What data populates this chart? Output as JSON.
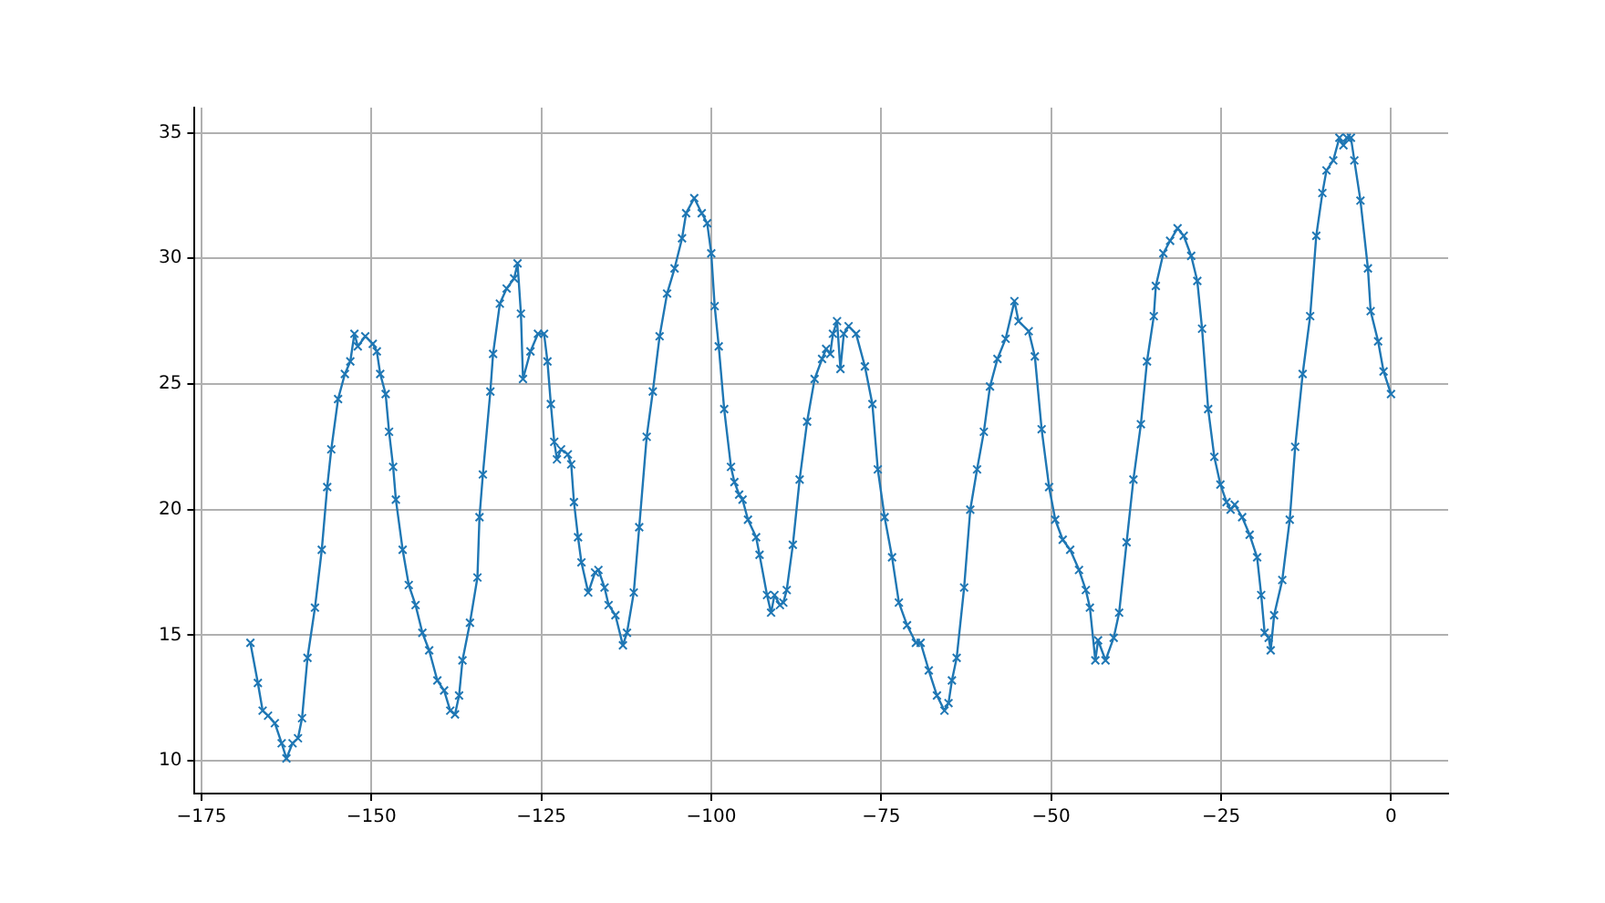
{
  "chart_data": {
    "type": "line",
    "marker": "cross",
    "grid": true,
    "xlim": [
      -176,
      8.4
    ],
    "ylim": [
      8.7,
      36.0
    ],
    "xticks": [
      {
        "value": -175,
        "label": "−175"
      },
      {
        "value": -150,
        "label": "−150"
      },
      {
        "value": -125,
        "label": "−125"
      },
      {
        "value": -100,
        "label": "−100"
      },
      {
        "value": -75,
        "label": "−75"
      },
      {
        "value": -50,
        "label": "−50"
      },
      {
        "value": -25,
        "label": "−25"
      },
      0
    ],
    "yticks": [
      10,
      15,
      20,
      25,
      30,
      35
    ],
    "series": [
      {
        "color": "#1f77b4",
        "x": [
          -167.8,
          -166.7,
          -166.0,
          -165.2,
          -164.2,
          -163.2,
          -162.5,
          -161.6,
          -160.8,
          -160.2,
          -159.4,
          -158.3,
          -157.3,
          -156.5,
          -155.9,
          -154.9,
          -153.9,
          -153.1,
          -152.5,
          -152.0,
          -150.9,
          -149.8,
          -149.2,
          -148.7,
          -147.9,
          -147.4,
          -146.8,
          -146.4,
          -145.4,
          -144.5,
          -143.5,
          -142.5,
          -141.5,
          -140.3,
          -139.3,
          -138.4,
          -137.7,
          -137.1,
          -136.6,
          -135.5,
          -134.4,
          -134.1,
          -133.6,
          -132.5,
          -132.1,
          -131.1,
          -130.1,
          -129.0,
          -128.5,
          -128.0,
          -127.7,
          -126.6,
          -125.5,
          -124.6,
          -124.1,
          -123.6,
          -123.1,
          -122.7,
          -122.1,
          -121.1,
          -120.6,
          -120.2,
          -119.6,
          -119.1,
          -118.1,
          -117.1,
          -116.6,
          -115.7,
          -115.1,
          -114.1,
          -113.0,
          -112.4,
          -111.4,
          -110.6,
          -109.5,
          -108.6,
          -107.6,
          -106.5,
          -105.4,
          -104.3,
          -103.7,
          -102.5,
          -101.4,
          -100.6,
          -100.0,
          -99.5,
          -98.9,
          -98.1,
          -97.1,
          -96.6,
          -95.9,
          -95.4,
          -94.6,
          -93.4,
          -92.9,
          -91.8,
          -91.2,
          -90.7,
          -89.9,
          -89.4,
          -88.9,
          -88.0,
          -87.0,
          -85.9,
          -84.8,
          -83.7,
          -83.1,
          -82.5,
          -82.1,
          -81.5,
          -81.0,
          -80.5,
          -79.8,
          -78.7,
          -77.4,
          -76.3,
          -75.5,
          -74.5,
          -73.4,
          -72.4,
          -71.2,
          -69.9,
          -69.2,
          -68.0,
          -66.8,
          -65.7,
          -65.1,
          -64.6,
          -63.9,
          -62.8,
          -61.9,
          -60.9,
          -59.9,
          -59.0,
          -57.9,
          -56.7,
          -55.4,
          -54.8,
          -53.3,
          -52.4,
          -51.4,
          -50.3,
          -49.4,
          -48.3,
          -47.2,
          -45.9,
          -44.9,
          -44.3,
          -43.5,
          -43.1,
          -42.0,
          -40.8,
          -40.0,
          -38.9,
          -37.9,
          -36.8,
          -35.9,
          -34.9,
          -34.6,
          -33.5,
          -32.5,
          -31.4,
          -30.5,
          -29.4,
          -28.5,
          -27.8,
          -26.9,
          -26.0,
          -25.1,
          -24.2,
          -23.6,
          -23.0,
          -21.9,
          -20.8,
          -19.7,
          -19.1,
          -18.6,
          -18.0,
          -17.7,
          -17.2,
          -16.0,
          -14.9,
          -14.1,
          -13.0,
          -11.9,
          -11.0,
          -10.1,
          -9.5,
          -8.5,
          -7.6,
          -7.0,
          -6.5,
          -5.9,
          -5.4,
          -4.5,
          -3.4,
          -3.0,
          -1.9,
          -1.1,
          0.0
        ],
        "values": [
          14.7,
          13.1,
          12.0,
          11.8,
          11.5,
          10.7,
          10.1,
          10.7,
          10.9,
          11.7,
          14.1,
          16.1,
          18.4,
          20.9,
          22.4,
          24.4,
          25.4,
          25.9,
          27.0,
          26.5,
          26.9,
          26.6,
          26.3,
          25.4,
          24.6,
          23.1,
          21.7,
          20.4,
          18.4,
          17.0,
          16.2,
          15.1,
          14.4,
          13.2,
          12.8,
          12.0,
          11.85,
          12.6,
          14.0,
          15.5,
          17.3,
          19.7,
          21.4,
          24.7,
          26.2,
          28.2,
          28.8,
          29.2,
          29.8,
          27.8,
          25.2,
          26.3,
          27.0,
          27.0,
          25.9,
          24.2,
          22.7,
          22.0,
          22.4,
          22.2,
          21.8,
          20.3,
          18.9,
          17.9,
          16.7,
          17.5,
          17.6,
          16.9,
          16.2,
          15.8,
          14.6,
          15.1,
          16.7,
          19.3,
          22.9,
          24.7,
          26.9,
          28.6,
          29.6,
          30.8,
          31.8,
          32.4,
          31.8,
          31.4,
          30.2,
          28.1,
          26.5,
          24.0,
          21.7,
          21.1,
          20.6,
          20.4,
          19.6,
          18.9,
          18.2,
          16.6,
          15.9,
          16.6,
          16.2,
          16.3,
          16.8,
          18.6,
          21.2,
          23.5,
          25.2,
          26.0,
          26.4,
          26.2,
          27.0,
          27.5,
          25.6,
          27.0,
          27.3,
          27.0,
          25.7,
          24.2,
          21.6,
          19.7,
          18.1,
          16.3,
          15.4,
          14.7,
          14.7,
          13.6,
          12.6,
          12.0,
          12.3,
          13.2,
          14.1,
          16.9,
          20.0,
          21.6,
          23.1,
          24.9,
          26.0,
          26.8,
          28.3,
          27.5,
          27.1,
          26.1,
          23.2,
          20.9,
          19.6,
          18.8,
          18.4,
          17.6,
          16.8,
          16.1,
          14.0,
          14.8,
          14.0,
          14.9,
          15.9,
          18.7,
          21.2,
          23.4,
          25.9,
          27.7,
          28.9,
          30.2,
          30.7,
          31.2,
          30.9,
          30.1,
          29.1,
          27.2,
          24.0,
          22.1,
          21.0,
          20.3,
          20.0,
          20.2,
          19.7,
          19.0,
          18.1,
          16.6,
          15.1,
          14.9,
          14.4,
          15.8,
          17.2,
          19.6,
          22.5,
          25.4,
          27.7,
          30.9,
          32.6,
          33.5,
          33.9,
          34.8,
          34.5,
          34.8,
          34.8,
          33.9,
          32.3,
          29.6,
          27.9,
          26.7,
          25.5,
          24.6
        ]
      }
    ]
  }
}
